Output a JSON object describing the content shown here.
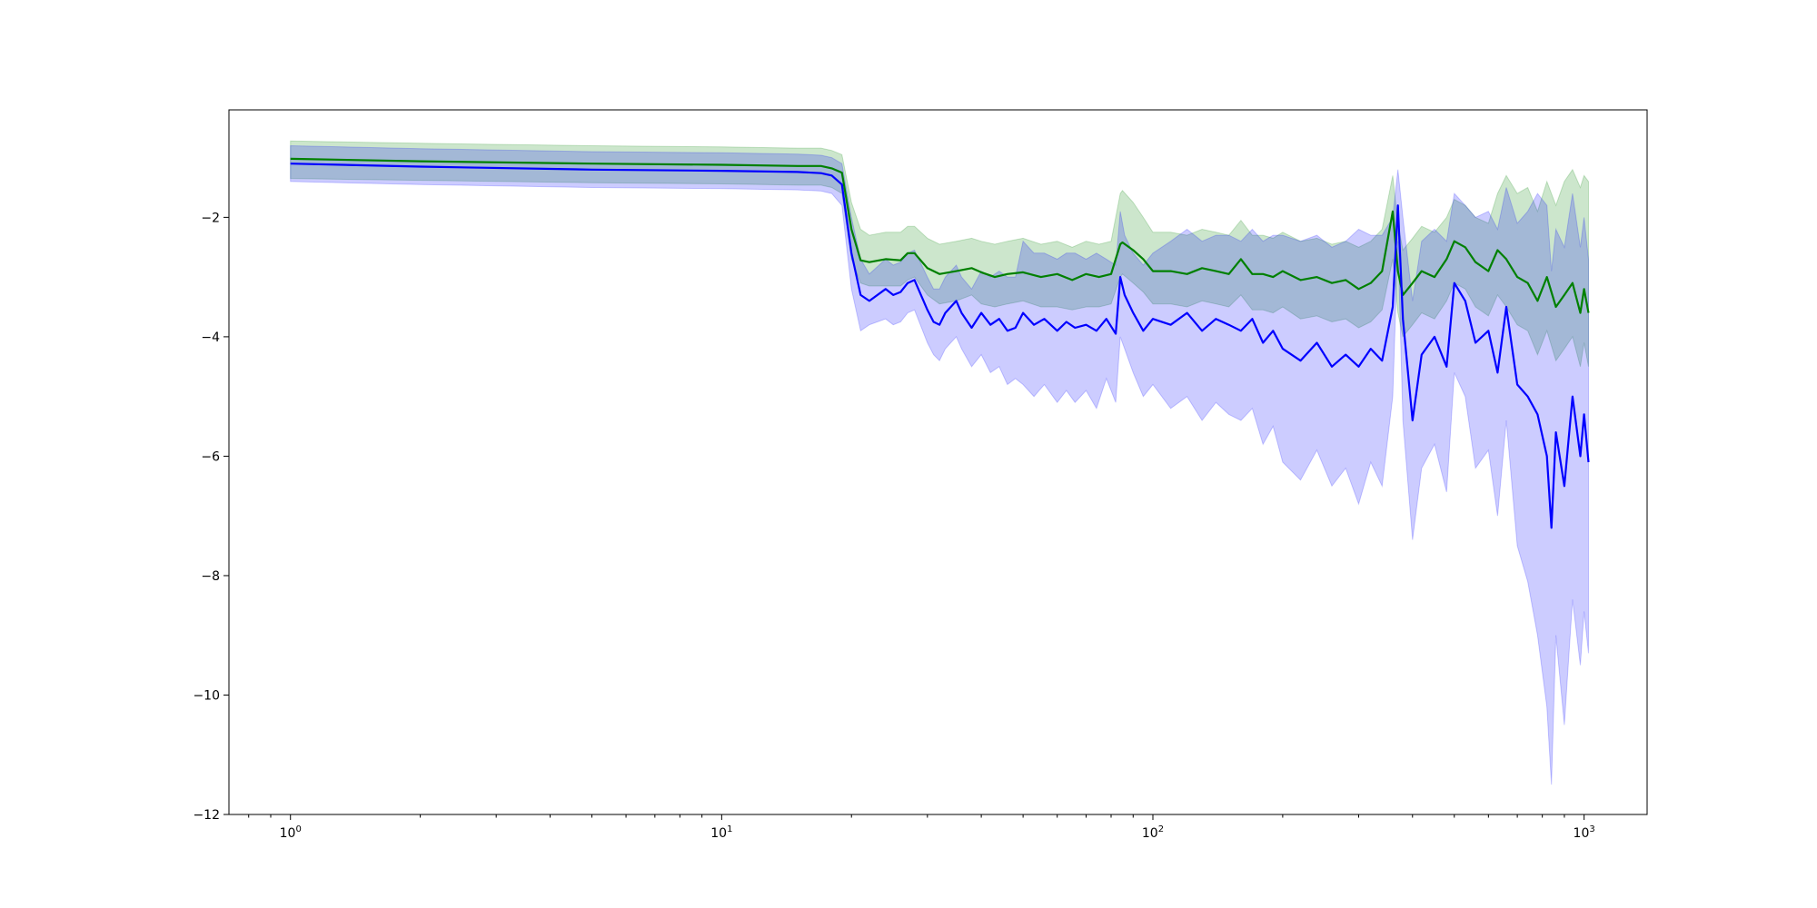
{
  "chart_data": {
    "type": "line",
    "title": "",
    "xlabel": "",
    "ylabel": "",
    "x_scale": "log",
    "xlim": [
      0.72,
      1400
    ],
    "ylim": [
      -12,
      -0.2
    ],
    "grid": false,
    "x_ticks": [
      {
        "value": 1,
        "base": "10",
        "exp": "0"
      },
      {
        "value": 10,
        "base": "10",
        "exp": "1"
      },
      {
        "value": 100,
        "base": "10",
        "exp": "2"
      },
      {
        "value": 1000,
        "base": "10",
        "exp": "3"
      }
    ],
    "y_ticks": [
      {
        "value": -2,
        "label": "−2"
      },
      {
        "value": -4,
        "label": "−4"
      },
      {
        "value": -6,
        "label": "−6"
      },
      {
        "value": -8,
        "label": "−8"
      },
      {
        "value": -10,
        "label": "−10"
      },
      {
        "value": -12,
        "label": "−12"
      }
    ],
    "series": [
      {
        "color": "#008000",
        "band_color": "#008000",
        "band_opacity": 0.2,
        "x": [
          1,
          2,
          5,
          10,
          15,
          17,
          18,
          19,
          20,
          21,
          22,
          24,
          26,
          27,
          28,
          30,
          32,
          35,
          38,
          40,
          43,
          46,
          50,
          55,
          60,
          65,
          70,
          75,
          80,
          84,
          85,
          90,
          95,
          100,
          110,
          120,
          130,
          140,
          150,
          160,
          170,
          180,
          190,
          200,
          220,
          240,
          260,
          280,
          300,
          320,
          340,
          360,
          370,
          380,
          400,
          420,
          450,
          480,
          500,
          530,
          560,
          600,
          630,
          660,
          700,
          740,
          780,
          820,
          860,
          900,
          940,
          980,
          1000,
          1024
        ],
        "y": [
          -1.02,
          -1.06,
          -1.1,
          -1.12,
          -1.14,
          -1.14,
          -1.18,
          -1.25,
          -2.2,
          -2.72,
          -2.75,
          -2.7,
          -2.72,
          -2.6,
          -2.6,
          -2.85,
          -2.95,
          -2.9,
          -2.85,
          -2.92,
          -3.0,
          -2.95,
          -2.92,
          -3.0,
          -2.95,
          -3.05,
          -2.95,
          -3.0,
          -2.95,
          -2.45,
          -2.42,
          -2.55,
          -2.7,
          -2.9,
          -2.9,
          -2.95,
          -2.85,
          -2.9,
          -2.95,
          -2.7,
          -2.95,
          -2.95,
          -3.0,
          -2.9,
          -3.05,
          -3.0,
          -3.1,
          -3.05,
          -3.2,
          -3.1,
          -2.9,
          -1.9,
          -2.9,
          -3.3,
          -3.1,
          -2.9,
          -3.0,
          -2.7,
          -2.4,
          -2.5,
          -2.75,
          -2.9,
          -2.55,
          -2.7,
          -3.0,
          -3.1,
          -3.4,
          -3.0,
          -3.5,
          -3.3,
          -3.1,
          -3.6,
          -3.2,
          -3.6
        ],
        "lower": [
          -1.35,
          -1.38,
          -1.42,
          -1.44,
          -1.46,
          -1.46,
          -1.5,
          -1.6,
          -2.7,
          -3.1,
          -3.15,
          -3.15,
          -3.15,
          -3.05,
          -3.0,
          -3.3,
          -3.45,
          -3.4,
          -3.3,
          -3.45,
          -3.5,
          -3.45,
          -3.4,
          -3.5,
          -3.5,
          -3.55,
          -3.5,
          -3.5,
          -3.45,
          -3.0,
          -2.95,
          -3.1,
          -3.25,
          -3.45,
          -3.45,
          -3.5,
          -3.4,
          -3.45,
          -3.5,
          -3.3,
          -3.55,
          -3.55,
          -3.6,
          -3.5,
          -3.7,
          -3.65,
          -3.75,
          -3.7,
          -3.85,
          -3.75,
          -3.55,
          -2.7,
          -3.6,
          -4.0,
          -3.8,
          -3.6,
          -3.7,
          -3.4,
          -3.1,
          -3.2,
          -3.5,
          -3.65,
          -3.3,
          -3.5,
          -3.8,
          -3.9,
          -4.3,
          -3.9,
          -4.4,
          -4.2,
          -4.0,
          -4.5,
          -4.1,
          -4.5
        ],
        "upper": [
          -0.72,
          -0.76,
          -0.8,
          -0.82,
          -0.84,
          -0.84,
          -0.88,
          -0.95,
          -1.75,
          -2.2,
          -2.3,
          -2.25,
          -2.25,
          -2.15,
          -2.15,
          -2.35,
          -2.45,
          -2.4,
          -2.35,
          -2.4,
          -2.45,
          -2.4,
          -2.35,
          -2.45,
          -2.4,
          -2.5,
          -2.4,
          -2.45,
          -2.4,
          -1.6,
          -1.55,
          -1.75,
          -2.0,
          -2.25,
          -2.25,
          -2.3,
          -2.2,
          -2.25,
          -2.3,
          -2.05,
          -2.3,
          -2.3,
          -2.35,
          -2.25,
          -2.4,
          -2.35,
          -2.45,
          -2.4,
          -2.5,
          -2.4,
          -2.2,
          -1.3,
          -2.1,
          -2.55,
          -2.35,
          -2.15,
          -2.25,
          -2.0,
          -1.7,
          -1.8,
          -2.0,
          -2.1,
          -1.6,
          -1.3,
          -1.6,
          -1.5,
          -1.9,
          -1.4,
          -1.8,
          -1.4,
          -1.2,
          -1.5,
          -1.3,
          -1.4
        ]
      },
      {
        "color": "#0000ff",
        "band_color": "#0000ff",
        "band_opacity": 0.2,
        "x": [
          1,
          2,
          5,
          10,
          15,
          17,
          18,
          19,
          20,
          21,
          22,
          24,
          25,
          26,
          27,
          28,
          30,
          31,
          32,
          33,
          35,
          36,
          38,
          40,
          42,
          44,
          46,
          48,
          50,
          53,
          56,
          60,
          63,
          66,
          70,
          74,
          78,
          82,
          84,
          86,
          90,
          95,
          100,
          110,
          120,
          130,
          140,
          150,
          160,
          170,
          180,
          190,
          200,
          220,
          240,
          260,
          280,
          300,
          320,
          340,
          360,
          370,
          380,
          400,
          420,
          450,
          480,
          500,
          530,
          560,
          600,
          630,
          660,
          700,
          740,
          780,
          820,
          840,
          860,
          900,
          940,
          980,
          1000,
          1024
        ],
        "y": [
          -1.1,
          -1.15,
          -1.2,
          -1.22,
          -1.24,
          -1.26,
          -1.3,
          -1.45,
          -2.6,
          -3.3,
          -3.4,
          -3.2,
          -3.3,
          -3.25,
          -3.1,
          -3.05,
          -3.55,
          -3.75,
          -3.8,
          -3.6,
          -3.4,
          -3.6,
          -3.85,
          -3.6,
          -3.8,
          -3.7,
          -3.9,
          -3.85,
          -3.6,
          -3.8,
          -3.7,
          -3.9,
          -3.75,
          -3.85,
          -3.8,
          -3.9,
          -3.7,
          -3.95,
          -3.0,
          -3.3,
          -3.6,
          -3.9,
          -3.7,
          -3.8,
          -3.6,
          -3.9,
          -3.7,
          -3.8,
          -3.9,
          -3.7,
          -4.1,
          -3.9,
          -4.2,
          -4.4,
          -4.1,
          -4.5,
          -4.3,
          -4.5,
          -4.2,
          -4.4,
          -3.5,
          -1.8,
          -3.7,
          -5.4,
          -4.3,
          -4.0,
          -4.5,
          -3.1,
          -3.4,
          -4.1,
          -3.9,
          -4.6,
          -3.5,
          -4.8,
          -5.0,
          -5.3,
          -6.0,
          -7.2,
          -5.6,
          -6.5,
          -5.0,
          -6.0,
          -5.3,
          -6.1
        ],
        "lower": [
          -1.4,
          -1.45,
          -1.5,
          -1.52,
          -1.54,
          -1.56,
          -1.6,
          -1.8,
          -3.2,
          -3.9,
          -3.8,
          -3.7,
          -3.8,
          -3.75,
          -3.6,
          -3.55,
          -4.1,
          -4.3,
          -4.4,
          -4.2,
          -4.0,
          -4.2,
          -4.5,
          -4.3,
          -4.6,
          -4.5,
          -4.8,
          -4.7,
          -4.8,
          -5.0,
          -4.8,
          -5.1,
          -4.9,
          -5.1,
          -4.9,
          -5.2,
          -4.7,
          -5.1,
          -4.0,
          -4.2,
          -4.6,
          -5.0,
          -4.8,
          -5.2,
          -5.0,
          -5.4,
          -5.1,
          -5.3,
          -5.4,
          -5.2,
          -5.8,
          -5.5,
          -6.1,
          -6.4,
          -5.9,
          -6.5,
          -6.2,
          -6.8,
          -6.1,
          -6.5,
          -5.0,
          -2.4,
          -5.4,
          -7.4,
          -6.2,
          -5.8,
          -6.6,
          -4.6,
          -5.0,
          -6.2,
          -5.9,
          -7.0,
          -5.4,
          -7.5,
          -8.1,
          -9.0,
          -10.2,
          -11.5,
          -9.0,
          -10.5,
          -8.4,
          -9.5,
          -8.6,
          -9.3
        ],
        "upper": [
          -0.8,
          -0.85,
          -0.9,
          -0.92,
          -0.94,
          -0.96,
          -1.0,
          -1.1,
          -2.0,
          -2.7,
          -2.95,
          -2.7,
          -2.8,
          -2.75,
          -2.6,
          -2.55,
          -3.0,
          -3.2,
          -3.2,
          -3.0,
          -2.8,
          -3.0,
          -3.2,
          -2.9,
          -3.0,
          -2.9,
          -3.0,
          -3.0,
          -2.4,
          -2.6,
          -2.6,
          -2.7,
          -2.6,
          -2.6,
          -2.7,
          -2.6,
          -2.7,
          -2.8,
          -1.9,
          -2.3,
          -2.6,
          -2.8,
          -2.6,
          -2.4,
          -2.2,
          -2.4,
          -2.3,
          -2.3,
          -2.4,
          -2.2,
          -2.4,
          -2.3,
          -2.3,
          -2.4,
          -2.3,
          -2.5,
          -2.4,
          -2.2,
          -2.3,
          -2.3,
          -2.0,
          -1.2,
          -2.0,
          -3.4,
          -2.4,
          -2.2,
          -2.4,
          -1.6,
          -1.8,
          -2.0,
          -1.9,
          -2.2,
          -1.5,
          -2.1,
          -1.9,
          -1.6,
          -1.8,
          -2.9,
          -2.2,
          -2.5,
          -1.6,
          -2.5,
          -2.0,
          -2.7
        ]
      }
    ]
  }
}
